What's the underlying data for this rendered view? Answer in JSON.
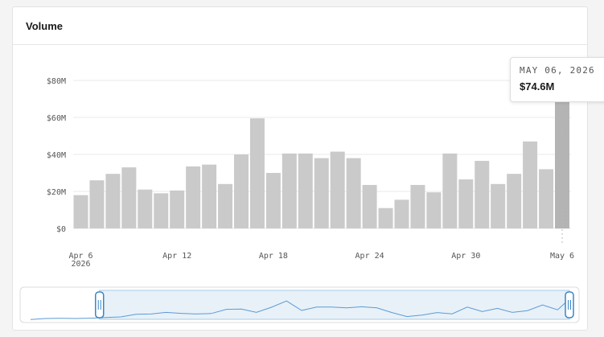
{
  "card": {
    "title": "Volume"
  },
  "tooltip": {
    "date": "MAY 06, 2026",
    "value": "$74.6M"
  },
  "colors": {
    "bar": "#cacaca",
    "bar_active": "#b4b4b4",
    "grid": "#e8e8e8",
    "navigator_line": "#5b9bd5",
    "navigator_fill": "#e8f1f8",
    "handle": "#3b86c6"
  },
  "chart_data": {
    "type": "bar",
    "ylim": [
      0,
      80
    ],
    "yticks": [
      {
        "value": 80,
        "label": "$80M"
      },
      {
        "value": 60,
        "label": "$60M"
      },
      {
        "value": 40,
        "label": "$40M"
      },
      {
        "value": 20,
        "label": "$20M"
      },
      {
        "value": 0,
        "label": "$0"
      }
    ],
    "categories": [
      "2026-04-06",
      "2026-04-07",
      "2026-04-08",
      "2026-04-09",
      "2026-04-10",
      "2026-04-11",
      "2026-04-12",
      "2026-04-13",
      "2026-04-14",
      "2026-04-15",
      "2026-04-16",
      "2026-04-17",
      "2026-04-18",
      "2026-04-19",
      "2026-04-20",
      "2026-04-21",
      "2026-04-22",
      "2026-04-23",
      "2026-04-24",
      "2026-04-25",
      "2026-04-26",
      "2026-04-27",
      "2026-04-28",
      "2026-04-29",
      "2026-04-30",
      "2026-05-01",
      "2026-05-02",
      "2026-05-03",
      "2026-05-04",
      "2026-05-05",
      "2026-05-06"
    ],
    "values": [
      18,
      26,
      29.5,
      33,
      21,
      19,
      20.5,
      33.5,
      34.5,
      24,
      40,
      59.5,
      30,
      40.5,
      40.5,
      38,
      41.5,
      38,
      23.5,
      11,
      15.5,
      23.5,
      19.5,
      40.5,
      26.5,
      36.5,
      24,
      29.5,
      47,
      32,
      74.6
    ],
    "active_index": 30,
    "xticks": [
      {
        "index": 0,
        "label": "Apr 6",
        "sub": "2026"
      },
      {
        "index": 6,
        "label": "Apr 12",
        "sub": ""
      },
      {
        "index": 12,
        "label": "Apr 18",
        "sub": ""
      },
      {
        "index": 18,
        "label": "Apr 24",
        "sub": ""
      },
      {
        "index": 24,
        "label": "Apr 30",
        "sub": ""
      },
      {
        "index": 30,
        "label": "May 6",
        "sub": ""
      }
    ],
    "navigator": {
      "selected_start": 0.14,
      "selected_end": 1.0,
      "preview_values": [
        2,
        5,
        5.5,
        5,
        6,
        8,
        10,
        18,
        19,
        24,
        21,
        19,
        20.5,
        33.5,
        34.5,
        24,
        40,
        59.5,
        30,
        40.5,
        40.5,
        38,
        41.5,
        38,
        23.5,
        11,
        15.5,
        23.5,
        19.5,
        40.5,
        26.5,
        36.5,
        24,
        29.5,
        47,
        32,
        74.6
      ]
    }
  }
}
